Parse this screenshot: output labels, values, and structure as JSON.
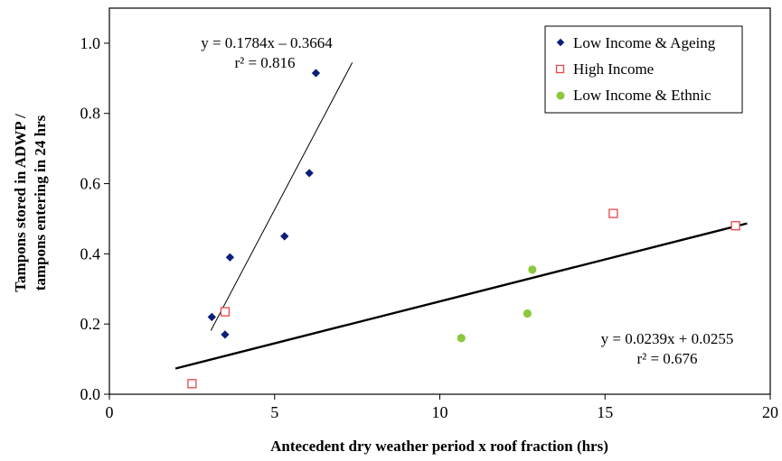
{
  "chart_data": {
    "type": "scatter",
    "xlabel": "Antecedent dry weather period x roof fraction (hrs)",
    "ylabel_lines": [
      "Tampons stored in ADWP /",
      "tampons entering in 24 hrs"
    ],
    "xlim": [
      0,
      20
    ],
    "ylim": [
      0,
      1.1
    ],
    "xticks": [
      "0",
      "5",
      "10",
      "15",
      "20"
    ],
    "yticks": [
      "0.0",
      "0.2",
      "0.4",
      "0.6",
      "0.8",
      "1.0"
    ],
    "grid": false,
    "legend_position": "top-right",
    "series": [
      {
        "name": "Low Income & Ageing",
        "marker": "diamond",
        "color": "#0b1f7a",
        "points": [
          [
            3.1,
            0.22
          ],
          [
            3.5,
            0.17
          ],
          [
            3.65,
            0.39
          ],
          [
            5.3,
            0.45
          ],
          [
            6.05,
            0.63
          ],
          [
            6.25,
            0.915
          ]
        ]
      },
      {
        "name": "High Income",
        "marker": "open-square",
        "color": "#e8454a",
        "points": [
          [
            2.5,
            0.03
          ],
          [
            3.5,
            0.235
          ],
          [
            15.25,
            0.515
          ],
          [
            18.95,
            0.48
          ]
        ]
      },
      {
        "name": "Low Income & Ethnic",
        "marker": "circle",
        "color": "#8cc83c",
        "points": [
          [
            10.65,
            0.16
          ],
          [
            12.65,
            0.23
          ],
          [
            12.8,
            0.355
          ]
        ]
      }
    ],
    "trendlines": [
      {
        "for": "Low Income & Ageing",
        "slope": 0.1784,
        "intercept": -0.3664,
        "x_range": [
          3.07,
          7.35
        ],
        "equation": "y = 0.1784x – 0.3664",
        "r2": "r² = 0.816",
        "color": "#000000",
        "weight": "thin"
      },
      {
        "for": "High Income & Low Income & Ethnic",
        "slope": 0.0239,
        "intercept": 0.0255,
        "x_range": [
          2.0,
          19.3
        ],
        "equation": "y = 0.0239x + 0.0255",
        "r2": "r² = 0.676",
        "color": "#000000",
        "weight": "thick"
      }
    ]
  }
}
